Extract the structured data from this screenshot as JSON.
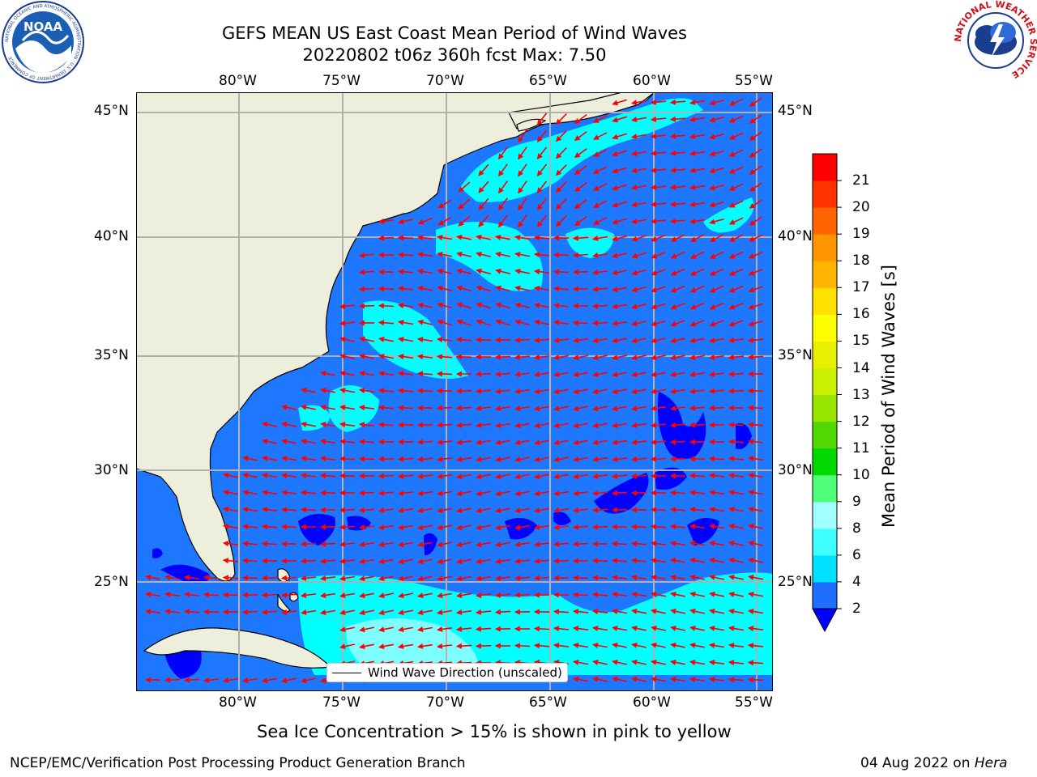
{
  "header": {
    "title_line1": "GEFS MEAN US East Coast Mean Period of Wind Waves",
    "title_line2": "20220802 t06z 360h fcst   Max: 7.50"
  },
  "map": {
    "lon_labels": [
      "80°W",
      "75°W",
      "70°W",
      "65°W",
      "60°W",
      "55°W"
    ],
    "lat_labels": [
      "45°N",
      "40°N",
      "35°N",
      "30°N",
      "25°N"
    ],
    "lon_range_deg": [
      -85,
      -54.3
    ],
    "lat_range_deg": [
      20.5,
      45.8
    ],
    "ocean_color": "#1e78ff",
    "land_color": "#eeeedc",
    "vector_color": "#ff0000",
    "legend_label": "Wind Wave Direction (unscaled)"
  },
  "colorbar": {
    "label": "Mean Period of Wind Waves [s]",
    "ticks": [
      "2",
      "4",
      "6",
      "8",
      "9",
      "10",
      "11",
      "12",
      "13",
      "14",
      "15",
      "16",
      "17",
      "18",
      "19",
      "20",
      "21"
    ],
    "colors": [
      "#1e6eff",
      "#00e0ff",
      "#40ffff",
      "#a0ffff",
      "#50ff78",
      "#00d800",
      "#50d800",
      "#98e600",
      "#c8f000",
      "#e6f000",
      "#ffff00",
      "#ffe000",
      "#ffb400",
      "#ff9600",
      "#ff6400",
      "#ff3200",
      "#ff0000"
    ],
    "extend_min_color": "#0000ff"
  },
  "logos": {
    "noaa_text": "NOAA",
    "noaa_ring_text": "NATIONAL OCEANIC AND ATMOSPHERIC ADMINISTRATION · U.S. DEPARTMENT OF COMMERCE",
    "nws_ring_text": "NATIONAL WEATHER SERVICE"
  },
  "footer": {
    "note": "Sea Ice Concentration > 15% is shown in pink to yellow",
    "left": "NCEP/EMC/Verification Post Processing Product Generation Branch",
    "right_date": "04 Aug 2022 on ",
    "right_host": "Hera"
  }
}
